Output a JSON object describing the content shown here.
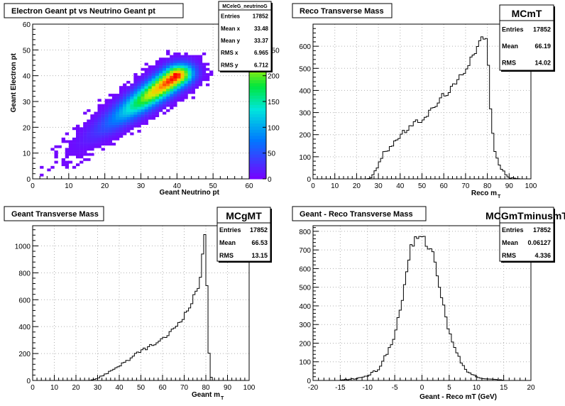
{
  "chart_data": [
    {
      "id": "p1",
      "type": "heatmap",
      "title": "Electron Geant pt vs Neutrino Geant pt",
      "xlabel": "Geant Neutrino pt",
      "ylabel": "Geant Electron pt",
      "xlim": [
        0,
        60
      ],
      "ylim": [
        0,
        60
      ],
      "xticks": [
        0,
        10,
        20,
        30,
        40,
        50,
        60
      ],
      "yticks": [
        0,
        10,
        20,
        30,
        40,
        50,
        60
      ],
      "zlim": [
        0,
        300
      ],
      "zticks": [
        0,
        50,
        100,
        150,
        200,
        250
      ],
      "grid": true,
      "peak": {
        "x": 40,
        "y": 40,
        "value": 300
      },
      "stats": {
        "name": "MCeleG_neutrinoG",
        "rows": [
          [
            "Entries",
            "17852"
          ],
          [
            "Mean x",
            "33.48"
          ],
          [
            "Mean y",
            "33.37"
          ],
          [
            "RMS x",
            "6.965"
          ],
          [
            "RMS y",
            "6.712"
          ]
        ]
      }
    },
    {
      "id": "p2",
      "type": "bar",
      "title": "Reco Transverse Mass",
      "xlabel": "Reco m",
      "xlabel_sub": "T",
      "xlim": [
        0,
        100
      ],
      "ylim": [
        0,
        700
      ],
      "xticks": [
        0,
        10,
        20,
        30,
        40,
        50,
        60,
        70,
        80,
        90,
        100
      ],
      "yticks": [
        0,
        100,
        200,
        300,
        400,
        500,
        600
      ],
      "grid": true,
      "bin_width": 1,
      "x": [
        25,
        27,
        30,
        32,
        35,
        40,
        45,
        50,
        55,
        60,
        65,
        70,
        73,
        76,
        78,
        79,
        80,
        81,
        82,
        84,
        86,
        90,
        95
      ],
      "values": [
        0,
        8,
        60,
        110,
        140,
        195,
        240,
        270,
        315,
        380,
        420,
        500,
        560,
        610,
        640,
        650,
        600,
        420,
        230,
        100,
        50,
        5,
        0
      ],
      "stats": {
        "name": "MCmT",
        "rows": [
          [
            "Entries",
            "17852"
          ],
          [
            "Mean",
            "66.19"
          ],
          [
            "RMS",
            "14.02"
          ]
        ]
      }
    },
    {
      "id": "p3",
      "type": "bar",
      "title": "Geant Transverse Mass",
      "xlabel": "Geant m",
      "xlabel_sub": "T",
      "xlim": [
        0,
        100
      ],
      "ylim": [
        0,
        1150
      ],
      "xticks": [
        0,
        10,
        20,
        30,
        40,
        50,
        60,
        70,
        80,
        90,
        100
      ],
      "yticks": [
        0,
        200,
        400,
        600,
        800,
        1000
      ],
      "grid": true,
      "bin_width": 1,
      "x": [
        26,
        30,
        35,
        40,
        45,
        50,
        55,
        60,
        65,
        70,
        73,
        75,
        77,
        78,
        79,
        80,
        81,
        82,
        83
      ],
      "values": [
        0,
        15,
        60,
        110,
        160,
        220,
        260,
        300,
        380,
        480,
        560,
        640,
        720,
        850,
        1050,
        1080,
        350,
        40,
        0
      ],
      "stats": {
        "name": "MCgMT",
        "rows": [
          [
            "Entries",
            "17852"
          ],
          [
            "Mean",
            "66.53"
          ],
          [
            "RMS",
            "13.15"
          ]
        ]
      }
    },
    {
      "id": "p4",
      "type": "bar",
      "title": "Geant - Reco Transverse Mass",
      "xlabel": "Geant - Reco mT (GeV)",
      "xlim": [
        -20,
        20
      ],
      "ylim": [
        0,
        830
      ],
      "xticks": [
        -20,
        -15,
        -10,
        -5,
        0,
        5,
        10,
        15,
        20
      ],
      "yticks": [
        0,
        100,
        200,
        300,
        400,
        500,
        600,
        700,
        800
      ],
      "grid": true,
      "bin_width": 0.4,
      "x": [
        -15,
        -12,
        -10,
        -8,
        -6,
        -5,
        -4,
        -3,
        -2,
        -1,
        0,
        1,
        2,
        3,
        4,
        5,
        6,
        8,
        10,
        12,
        15
      ],
      "values": [
        2,
        10,
        25,
        60,
        170,
        240,
        390,
        530,
        710,
        760,
        780,
        730,
        700,
        520,
        390,
        260,
        170,
        55,
        20,
        8,
        2
      ],
      "stats": {
        "name": "MCGmTminusmT",
        "rows": [
          [
            "Entries",
            "17852"
          ],
          [
            "Mean",
            "0.06127"
          ],
          [
            "RMS",
            "4.336"
          ]
        ]
      }
    }
  ]
}
